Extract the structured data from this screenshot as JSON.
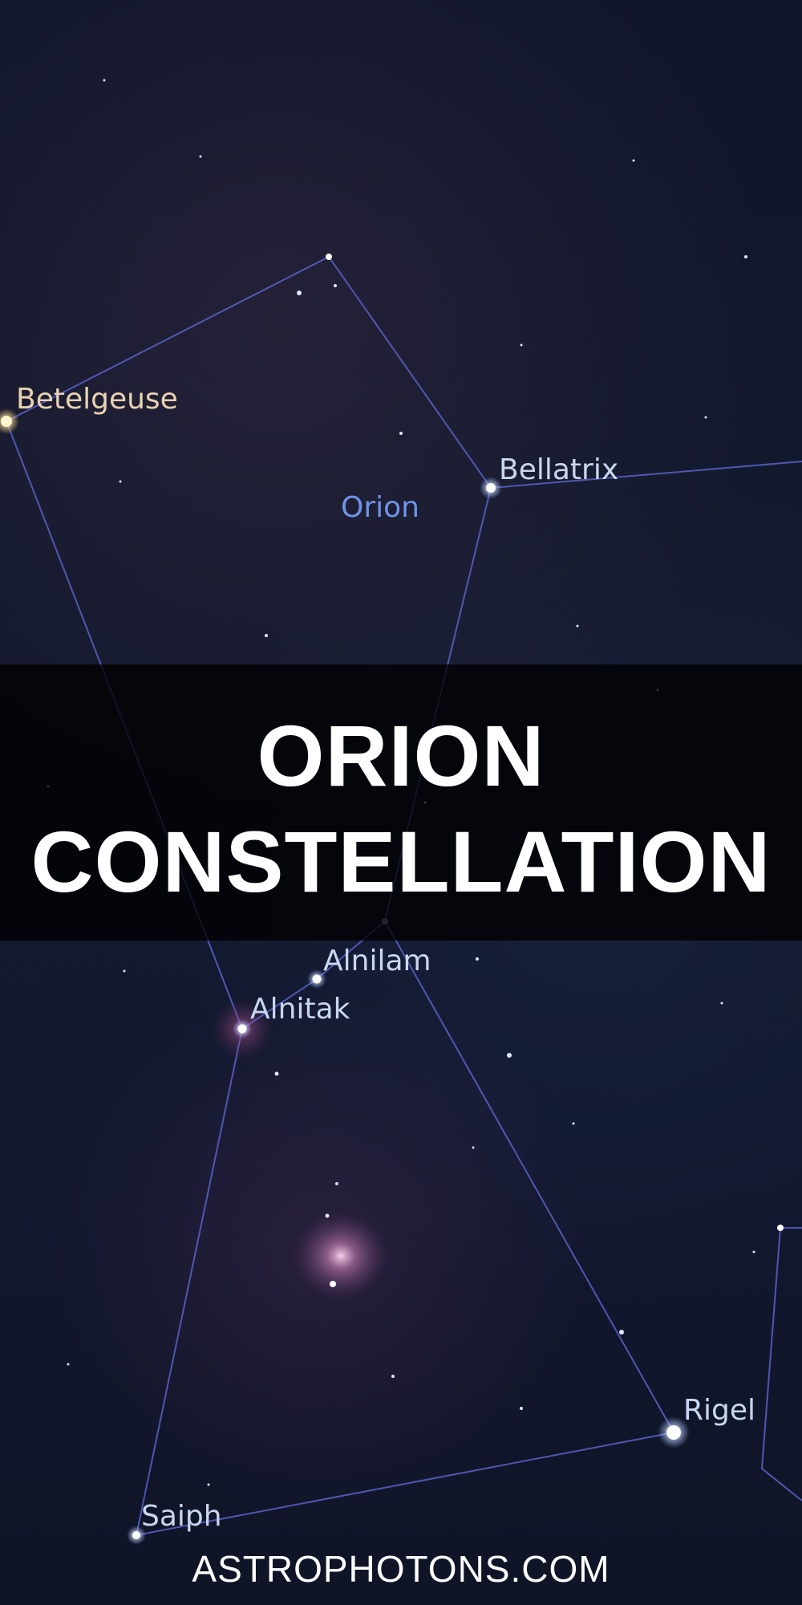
{
  "title": {
    "line1": "ORION",
    "line2": "CONSTELLATION"
  },
  "footer": {
    "url": "ASTROPHOTONS.COM"
  },
  "constellation_label": "Orion",
  "stars": {
    "betelgeuse": "Betelgeuse",
    "bellatrix": "Bellatrix",
    "alnilam": "Alnilam",
    "alnitak": "Alnitak",
    "rigel": "Rigel",
    "saiph": "Saiph"
  },
  "colors": {
    "sky": "#10162a",
    "constellation_line": "#5a62c8",
    "star_label": "#c9d6f0",
    "constellation_label": "#6f93e6",
    "betelgeuse_label": "#e8d2b0",
    "banner_background": "#000000",
    "title_text": "#ffffff"
  }
}
